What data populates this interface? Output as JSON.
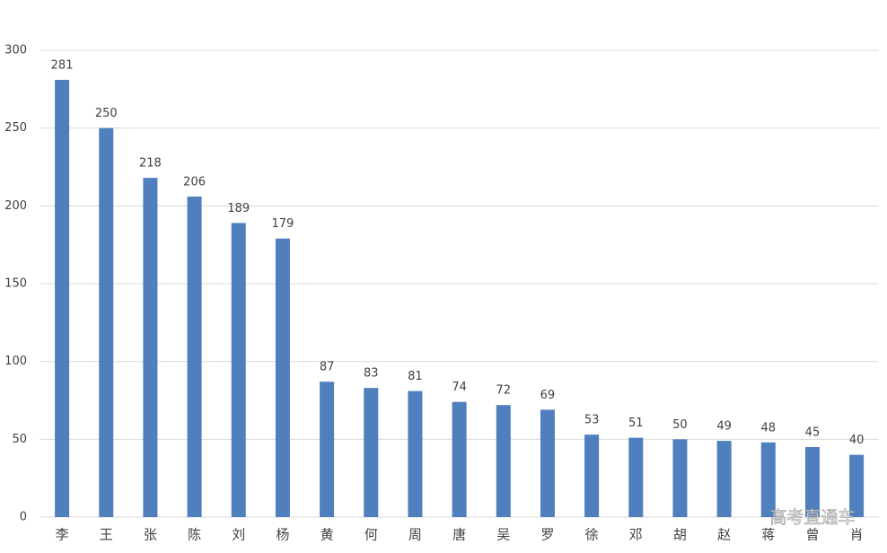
{
  "chart_data": {
    "type": "bar",
    "categories": [
      "李",
      "王",
      "张",
      "陈",
      "刘",
      "杨",
      "黄",
      "何",
      "周",
      "唐",
      "吴",
      "罗",
      "徐",
      "邓",
      "胡",
      "赵",
      "蒋",
      "曾",
      "肖"
    ],
    "values": [
      281,
      250,
      218,
      206,
      189,
      179,
      87,
      83,
      81,
      74,
      72,
      69,
      53,
      51,
      50,
      49,
      48,
      45,
      40
    ],
    "color": "#4f7fbd",
    "ylim": [
      0,
      300
    ],
    "yticks": [
      0,
      50,
      100,
      150,
      200,
      250,
      300
    ],
    "grid": true,
    "watermark": "高考直通车"
  }
}
